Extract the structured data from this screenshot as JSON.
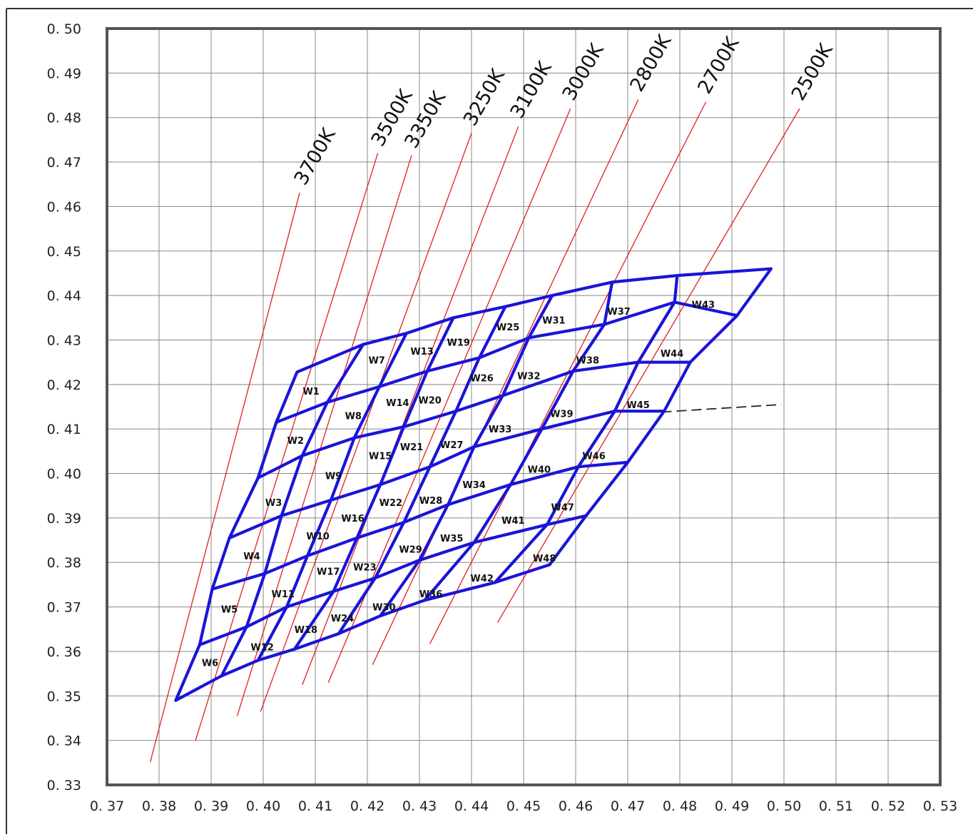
{
  "chart_data": {
    "type": "diagram-grid",
    "title": "",
    "xlabel": "",
    "ylabel": "",
    "xlim": [
      0.37,
      0.53
    ],
    "ylim": [
      0.33,
      0.5
    ],
    "grid": true,
    "x_ticks": [
      "0. 37",
      "0. 38",
      "0. 39",
      "0. 40",
      "0. 41",
      "0. 42",
      "0. 43",
      "0. 44",
      "0. 45",
      "0. 46",
      "0. 47",
      "0. 48",
      "0. 49",
      "0. 50",
      "0. 51",
      "0. 52",
      "0. 53"
    ],
    "y_ticks": [
      "0. 50",
      "0. 49",
      "0. 48",
      "0. 47",
      "0. 46",
      "0. 45",
      "0. 44",
      "0. 43",
      "0. 42",
      "0. 41",
      "0. 40",
      "0. 39",
      "0. 38",
      "0. 37",
      "0. 36",
      "0. 35",
      "0. 34",
      "0. 33"
    ],
    "colors": {
      "grid_blue": "#1a14d8",
      "cct_red": "#e02020",
      "gridline": "#888888",
      "frame": "#444444"
    },
    "cct_lines": [
      {
        "label": "3700K",
        "x1": 0.3783,
        "y1": 0.3351,
        "x2": 0.407,
        "y2": 0.4631,
        "label_x": 0.408,
        "label_y": 0.4645
      },
      {
        "label": "3500K",
        "x1": 0.387,
        "y1": 0.34,
        "x2": 0.422,
        "y2": 0.472,
        "label_x": 0.4228,
        "label_y": 0.4732
      },
      {
        "label": "3350K",
        "x1": 0.395,
        "y1": 0.3455,
        "x2": 0.4285,
        "y2": 0.4715,
        "label_x": 0.4292,
        "label_y": 0.4728
      },
      {
        "label": "3250K",
        "x1": 0.3995,
        "y1": 0.3465,
        "x2": 0.44,
        "y2": 0.4765,
        "label_x": 0.4405,
        "label_y": 0.4778
      },
      {
        "label": "3100K",
        "x1": 0.4075,
        "y1": 0.3525,
        "x2": 0.449,
        "y2": 0.478,
        "label_x": 0.4495,
        "label_y": 0.4795
      },
      {
        "label": "3000K",
        "x1": 0.4125,
        "y1": 0.353,
        "x2": 0.459,
        "y2": 0.482,
        "label_x": 0.4595,
        "label_y": 0.4835
      },
      {
        "label": "2800K",
        "x1": 0.421,
        "y1": 0.357,
        "x2": 0.472,
        "y2": 0.484,
        "label_x": 0.4725,
        "label_y": 0.4855
      },
      {
        "label": "2700K",
        "x1": 0.432,
        "y1": 0.3617,
        "x2": 0.485,
        "y2": 0.4835,
        "label_x": 0.4855,
        "label_y": 0.485
      },
      {
        "label": "2500K",
        "x1": 0.445,
        "y1": 0.3665,
        "x2": 0.503,
        "y2": 0.482,
        "label_x": 0.5035,
        "label_y": 0.4835
      }
    ],
    "dash_line": {
      "x1": 0.4765,
      "y1": 0.4138,
      "x2": 0.4995,
      "y2": 0.4155
    },
    "blue_grid": {
      "verticals": [
        [
          [
            0.3832,
            0.349
          ],
          [
            0.3878,
            0.3615
          ],
          [
            0.3902,
            0.374
          ],
          [
            0.3935,
            0.3855
          ],
          [
            0.399,
            0.399
          ],
          [
            0.4025,
            0.4115
          ],
          [
            0.4065,
            0.4228
          ]
        ],
        [
          [
            0.392,
            0.3545
          ],
          [
            0.3968,
            0.3655
          ],
          [
            0.4003,
            0.3775
          ],
          [
            0.4035,
            0.3905
          ],
          [
            0.4075,
            0.404
          ],
          [
            0.4123,
            0.416
          ],
          [
            0.4192,
            0.429
          ]
        ],
        [
          [
            0.399,
            0.358
          ],
          [
            0.4045,
            0.37
          ],
          [
            0.4085,
            0.3815
          ],
          [
            0.413,
            0.394
          ],
          [
            0.4175,
            0.408
          ],
          [
            0.4223,
            0.4195
          ],
          [
            0.4275,
            0.4315
          ]
        ],
        [
          [
            0.406,
            0.3605
          ],
          [
            0.4135,
            0.3735
          ],
          [
            0.418,
            0.3855
          ],
          [
            0.4225,
            0.3975
          ],
          [
            0.427,
            0.4105
          ],
          [
            0.4315,
            0.423
          ],
          [
            0.4365,
            0.435
          ]
        ],
        [
          [
            0.4145,
            0.364
          ],
          [
            0.4215,
            0.3765
          ],
          [
            0.427,
            0.389
          ],
          [
            0.432,
            0.4015
          ],
          [
            0.437,
            0.414
          ],
          [
            0.4415,
            0.426
          ],
          [
            0.4465,
            0.4375
          ]
        ],
        [
          [
            0.4225,
            0.368
          ],
          [
            0.43,
            0.3805
          ],
          [
            0.4355,
            0.393
          ],
          [
            0.4405,
            0.406
          ],
          [
            0.446,
            0.4175
          ],
          [
            0.451,
            0.4305
          ],
          [
            0.4555,
            0.44
          ]
        ],
        [
          [
            0.431,
            0.3715
          ],
          [
            0.4405,
            0.3845
          ],
          [
            0.4475,
            0.3975
          ],
          [
            0.4535,
            0.41
          ],
          [
            0.4595,
            0.423
          ],
          [
            0.4655,
            0.4335
          ],
          [
            0.467,
            0.443
          ]
        ],
        [
          [
            0.4445,
            0.3755
          ],
          [
            0.4545,
            0.3885
          ],
          [
            0.4605,
            0.4015
          ],
          [
            0.4675,
            0.414
          ],
          [
            0.472,
            0.425
          ],
          [
            0.479,
            0.4385
          ],
          [
            0.4795,
            0.4445
          ]
        ],
        [
          [
            0.455,
            0.3795
          ],
          [
            0.462,
            0.3905
          ],
          [
            0.47,
            0.4025
          ],
          [
            0.477,
            0.414
          ],
          [
            0.482,
            0.425
          ],
          [
            0.491,
            0.4355
          ],
          [
            0.4975,
            0.446
          ]
        ]
      ],
      "horizontals": [
        [
          [
            0.3832,
            0.349
          ],
          [
            0.392,
            0.3545
          ],
          [
            0.399,
            0.358
          ],
          [
            0.406,
            0.3605
          ],
          [
            0.4145,
            0.364
          ],
          [
            0.4225,
            0.368
          ],
          [
            0.431,
            0.3715
          ],
          [
            0.4445,
            0.3755
          ],
          [
            0.455,
            0.3795
          ]
        ],
        [
          [
            0.3878,
            0.3615
          ],
          [
            0.3968,
            0.3655
          ],
          [
            0.4045,
            0.37
          ],
          [
            0.4135,
            0.3735
          ],
          [
            0.4215,
            0.3765
          ],
          [
            0.43,
            0.3805
          ],
          [
            0.4405,
            0.3845
          ],
          [
            0.4545,
            0.3885
          ],
          [
            0.462,
            0.3905
          ]
        ],
        [
          [
            0.3902,
            0.374
          ],
          [
            0.4003,
            0.3775
          ],
          [
            0.4085,
            0.3815
          ],
          [
            0.418,
            0.3855
          ],
          [
            0.427,
            0.389
          ],
          [
            0.4355,
            0.393
          ],
          [
            0.4475,
            0.3975
          ],
          [
            0.4605,
            0.4015
          ],
          [
            0.47,
            0.4025
          ]
        ],
        [
          [
            0.3935,
            0.3855
          ],
          [
            0.4035,
            0.3905
          ],
          [
            0.413,
            0.394
          ],
          [
            0.4225,
            0.3975
          ],
          [
            0.432,
            0.4015
          ],
          [
            0.4405,
            0.406
          ],
          [
            0.4535,
            0.41
          ],
          [
            0.4675,
            0.414
          ],
          [
            0.477,
            0.414
          ]
        ],
        [
          [
            0.399,
            0.399
          ],
          [
            0.4075,
            0.404
          ],
          [
            0.4175,
            0.408
          ],
          [
            0.427,
            0.4105
          ],
          [
            0.437,
            0.414
          ],
          [
            0.446,
            0.4175
          ],
          [
            0.4595,
            0.423
          ],
          [
            0.472,
            0.425
          ],
          [
            0.482,
            0.425
          ]
        ],
        [
          [
            0.4025,
            0.4115
          ],
          [
            0.4123,
            0.416
          ],
          [
            0.4223,
            0.4195
          ],
          [
            0.4315,
            0.423
          ],
          [
            0.4415,
            0.426
          ],
          [
            0.451,
            0.4305
          ],
          [
            0.4655,
            0.4335
          ],
          [
            0.479,
            0.4385
          ],
          [
            0.491,
            0.4355
          ]
        ],
        [
          [
            0.4065,
            0.4228
          ],
          [
            0.4192,
            0.429
          ],
          [
            0.4275,
            0.4315
          ],
          [
            0.4365,
            0.435
          ],
          [
            0.4465,
            0.4375
          ],
          [
            0.4555,
            0.44
          ],
          [
            0.467,
            0.443
          ],
          [
            0.4795,
            0.4445
          ],
          [
            0.4975,
            0.446
          ]
        ]
      ]
    },
    "bins": [
      {
        "label": "W1",
        "x": 0.4092,
        "y": 0.4185
      },
      {
        "label": "W2",
        "x": 0.4062,
        "y": 0.4075
      },
      {
        "label": "W3",
        "x": 0.402,
        "y": 0.3935
      },
      {
        "label": "W4",
        "x": 0.3978,
        "y": 0.3815
      },
      {
        "label": "W5",
        "x": 0.3935,
        "y": 0.3695
      },
      {
        "label": "W6",
        "x": 0.3898,
        "y": 0.3575
      },
      {
        "label": "W7",
        "x": 0.4218,
        "y": 0.4255
      },
      {
        "label": "W8",
        "x": 0.4173,
        "y": 0.413
      },
      {
        "label": "W9",
        "x": 0.4135,
        "y": 0.3995
      },
      {
        "label": "W10",
        "x": 0.4105,
        "y": 0.386
      },
      {
        "label": "W11",
        "x": 0.4038,
        "y": 0.373
      },
      {
        "label": "W12",
        "x": 0.3998,
        "y": 0.361
      },
      {
        "label": "W13",
        "x": 0.4305,
        "y": 0.4275
      },
      {
        "label": "W14",
        "x": 0.4258,
        "y": 0.416
      },
      {
        "label": "W15",
        "x": 0.4225,
        "y": 0.404
      },
      {
        "label": "W16",
        "x": 0.4172,
        "y": 0.39
      },
      {
        "label": "W17",
        "x": 0.4125,
        "y": 0.378
      },
      {
        "label": "W18",
        "x": 0.4082,
        "y": 0.365
      },
      {
        "label": "W19",
        "x": 0.4375,
        "y": 0.4295
      },
      {
        "label": "W20",
        "x": 0.432,
        "y": 0.4165
      },
      {
        "label": "W21",
        "x": 0.4285,
        "y": 0.406
      },
      {
        "label": "W22",
        "x": 0.4245,
        "y": 0.3935
      },
      {
        "label": "W23",
        "x": 0.4195,
        "y": 0.379
      },
      {
        "label": "W24",
        "x": 0.4152,
        "y": 0.3675
      },
      {
        "label": "W25",
        "x": 0.447,
        "y": 0.433
      },
      {
        "label": "W26",
        "x": 0.442,
        "y": 0.4215
      },
      {
        "label": "W27",
        "x": 0.4362,
        "y": 0.4065
      },
      {
        "label": "W28",
        "x": 0.4322,
        "y": 0.394
      },
      {
        "label": "W29",
        "x": 0.4283,
        "y": 0.383
      },
      {
        "label": "W30",
        "x": 0.4232,
        "y": 0.37
      },
      {
        "label": "W31",
        "x": 0.4558,
        "y": 0.4345
      },
      {
        "label": "W32",
        "x": 0.451,
        "y": 0.422
      },
      {
        "label": "W33",
        "x": 0.4455,
        "y": 0.41
      },
      {
        "label": "W34",
        "x": 0.4405,
        "y": 0.3975
      },
      {
        "label": "W35",
        "x": 0.4362,
        "y": 0.3855
      },
      {
        "label": "W36",
        "x": 0.4322,
        "y": 0.373
      },
      {
        "label": "W37",
        "x": 0.4683,
        "y": 0.4365
      },
      {
        "label": "W38",
        "x": 0.4623,
        "y": 0.4255
      },
      {
        "label": "W39",
        "x": 0.4573,
        "y": 0.4135
      },
      {
        "label": "W40",
        "x": 0.453,
        "y": 0.401
      },
      {
        "label": "W41",
        "x": 0.448,
        "y": 0.3895
      },
      {
        "label": "W42",
        "x": 0.442,
        "y": 0.3765
      },
      {
        "label": "W43",
        "x": 0.4845,
        "y": 0.438
      },
      {
        "label": "W44",
        "x": 0.4785,
        "y": 0.427
      },
      {
        "label": "W45",
        "x": 0.472,
        "y": 0.4155
      },
      {
        "label": "W46",
        "x": 0.4635,
        "y": 0.404
      },
      {
        "label": "W47",
        "x": 0.4575,
        "y": 0.3925
      },
      {
        "label": "W48",
        "x": 0.454,
        "y": 0.381
      }
    ]
  }
}
